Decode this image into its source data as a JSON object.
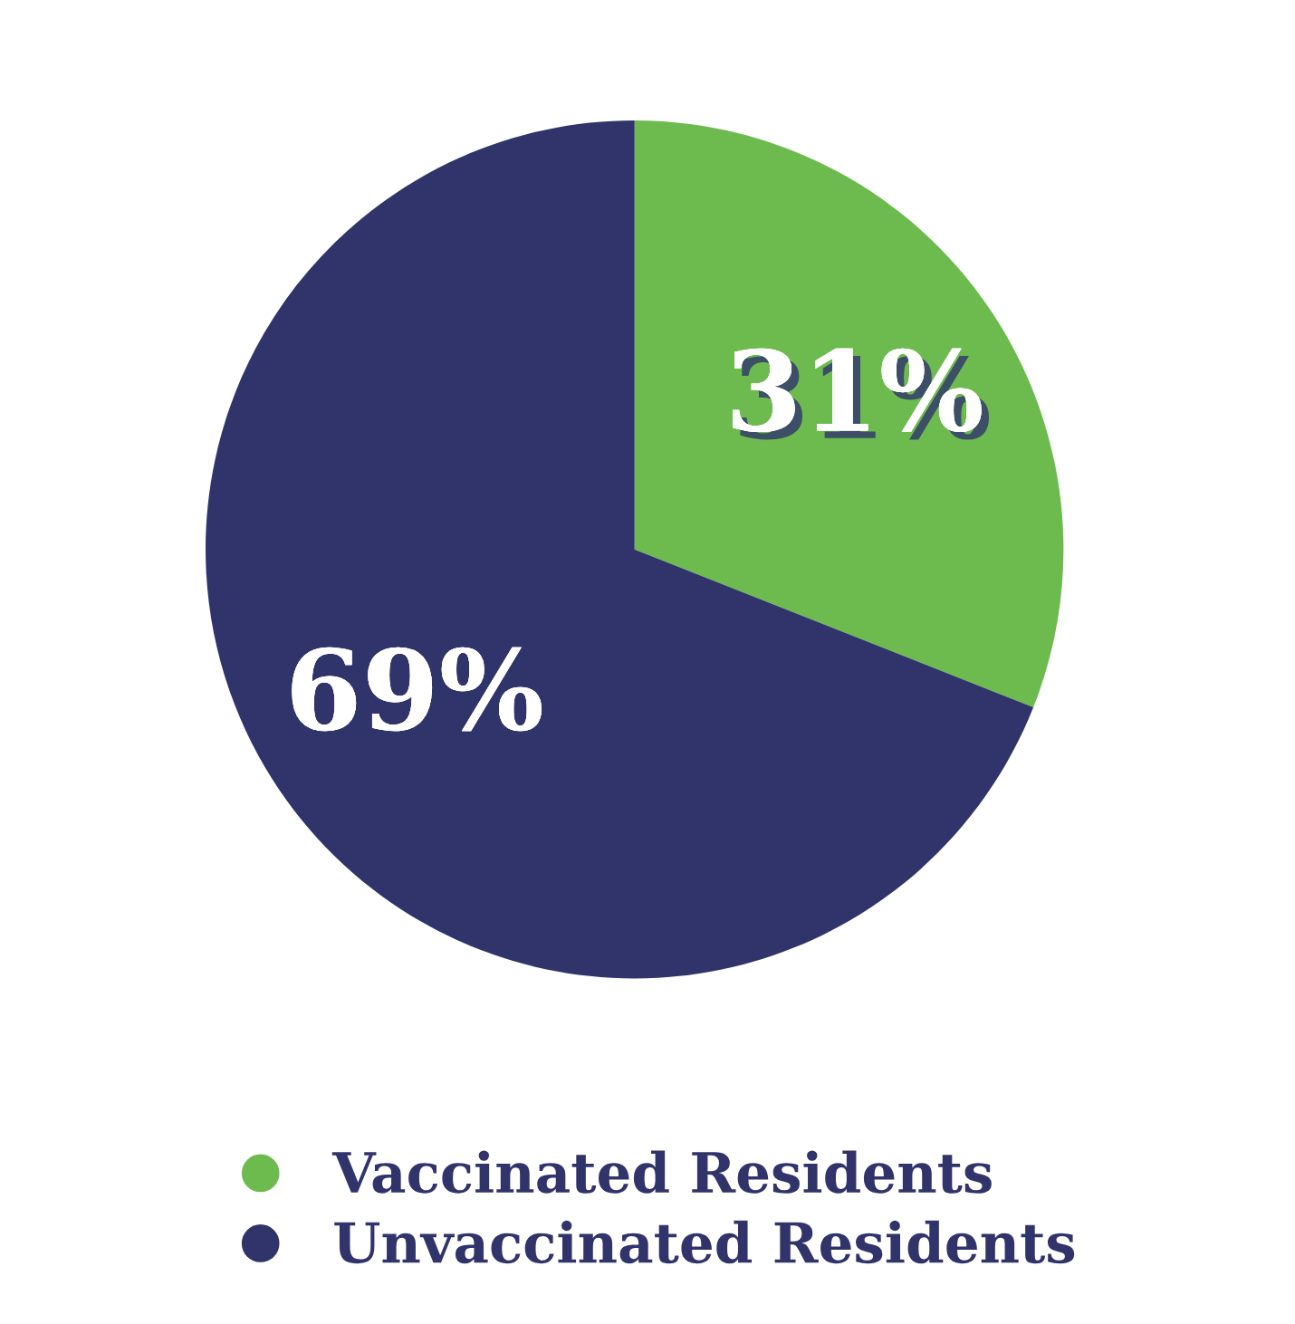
{
  "chart_data": {
    "type": "pie",
    "categories": [
      "Vaccinated Residents",
      "Unvaccinated Residents"
    ],
    "values": [
      31,
      69
    ],
    "colors": [
      "#6dbb4f",
      "#30346b"
    ],
    "value_labels": [
      "31%",
      "69%"
    ],
    "legend": "bottom left"
  }
}
